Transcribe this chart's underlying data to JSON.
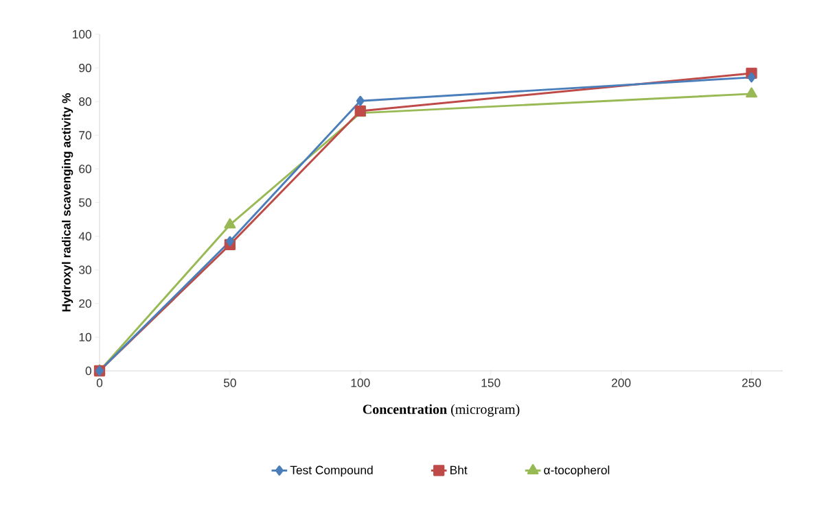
{
  "chart_data": {
    "type": "line",
    "xlabel": "**Concentration**   (microgram)",
    "ylabel": "Hydroxyl radical scavenging activity  %",
    "x": [
      0,
      50,
      100,
      250
    ],
    "series": [
      {
        "name": "Test Compound",
        "color": "#4a7ebb",
        "marker": "diamond",
        "values": [
          0,
          38.5,
          80.2,
          87.2
        ]
      },
      {
        "name": "Bht",
        "color": "#be4b48",
        "marker": "square",
        "values": [
          0,
          37.5,
          77.2,
          88.4
        ]
      },
      {
        "name": "α-tocopherol",
        "color": "#98b954",
        "marker": "triangle",
        "values": [
          0,
          43.4,
          76.6,
          82.3
        ]
      }
    ],
    "xlim": [
      0,
      262
    ],
    "xticks": [
      0,
      50,
      100,
      150,
      200,
      250
    ],
    "ylim": [
      0,
      100
    ],
    "yticks": [
      0,
      10,
      20,
      30,
      40,
      50,
      60,
      70,
      80,
      90,
      100
    ],
    "legend": "bottom",
    "line_style": "solid"
  }
}
